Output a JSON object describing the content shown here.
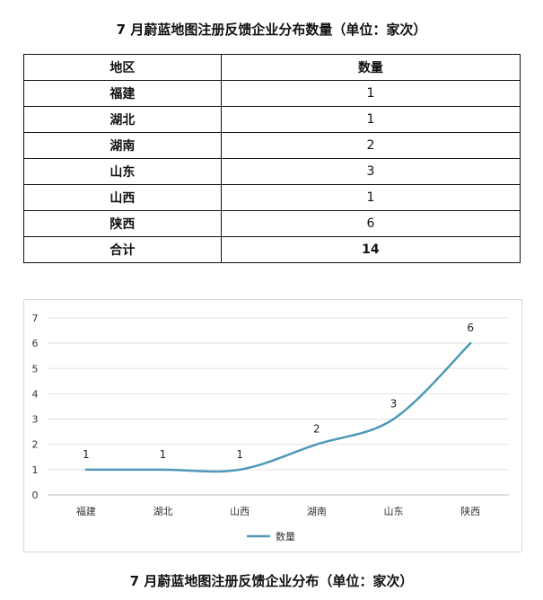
{
  "title_top": "7 月蔚蓝地图注册反馈企业分布数量（单位：家次）",
  "title_bottom": "7 月蔚蓝地图注册反馈企业分布（单位：家次）",
  "table": {
    "header": {
      "region": "地区",
      "count": "数量"
    },
    "rows": [
      {
        "region": "福建",
        "count": "1"
      },
      {
        "region": "湖北",
        "count": "1"
      },
      {
        "region": "湖南",
        "count": "2"
      },
      {
        "region": "山东",
        "count": "3"
      },
      {
        "region": "山西",
        "count": "1"
      },
      {
        "region": "陕西",
        "count": "6"
      }
    ],
    "total": {
      "label": "合计",
      "count": "14"
    }
  },
  "chart_data": {
    "type": "line",
    "categories": [
      "福建",
      "湖北",
      "山西",
      "湖南",
      "山东",
      "陕西"
    ],
    "series": [
      {
        "name": "数量",
        "values": [
          1,
          1,
          1,
          2,
          3,
          6
        ],
        "color": "#4e98b8"
      }
    ],
    "ylim": [
      0,
      7
    ],
    "yticks": [
      0,
      1,
      2,
      3,
      4,
      5,
      6,
      7
    ],
    "grid": true,
    "smooth": true,
    "legend": "bottom",
    "data_labels": true
  }
}
